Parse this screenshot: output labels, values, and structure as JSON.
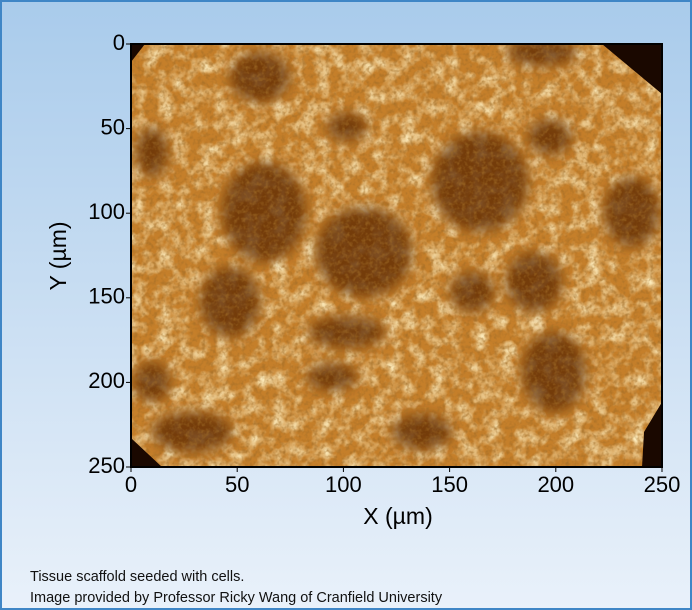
{
  "chart_data": {
    "type": "image",
    "xlabel": "X (µm)",
    "ylabel": "Y (µm)",
    "xlim": [
      0,
      250
    ],
    "ylim": [
      0,
      250
    ],
    "y_inverted": true,
    "xticks": [
      0,
      50,
      100,
      150,
      200,
      250
    ],
    "yticks": [
      0,
      50,
      100,
      150,
      200,
      250
    ],
    "grid": false
  },
  "caption": [
    "Tissue scaffold seeded with cells.",
    "Image provided by Professor Ricky Wang of Cranfield University"
  ]
}
